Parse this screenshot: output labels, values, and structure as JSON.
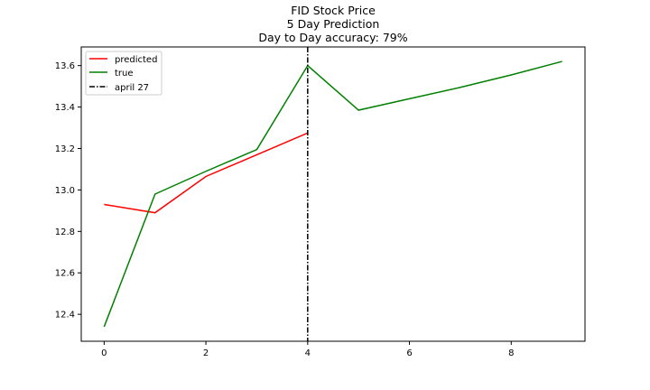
{
  "chart_data": {
    "type": "line",
    "title": "FID Stock Price",
    "subtitle_lines": [
      "5 Day Prediction",
      "Day to Day accuracy: 79%"
    ],
    "xlabel": "",
    "ylabel": "",
    "xlim": [
      -0.45,
      9.45
    ],
    "ylim": [
      12.27,
      13.69
    ],
    "x_ticks": [
      0,
      2,
      4,
      6,
      8
    ],
    "y_ticks": [
      12.4,
      12.6,
      12.8,
      13.0,
      13.2,
      13.4,
      13.6
    ],
    "x_tick_labels": [
      "0",
      "2",
      "4",
      "6",
      "8"
    ],
    "y_tick_labels": [
      "12.4",
      "12.6",
      "12.8",
      "13.0",
      "13.2",
      "13.4",
      "13.6"
    ],
    "grid": false,
    "legend_position": "top-left",
    "series": [
      {
        "name": "predicted",
        "color": "#ff0000",
        "x": [
          0,
          1,
          2,
          3,
          4
        ],
        "values": [
          12.93,
          12.89,
          13.065,
          13.17,
          13.275
        ]
      },
      {
        "name": "true",
        "color": "#008000",
        "x": [
          0,
          1,
          2,
          3,
          4,
          5,
          6,
          7,
          8,
          9
        ],
        "values": [
          12.34,
          12.98,
          13.09,
          13.195,
          13.6,
          13.385,
          13.44,
          13.495,
          13.555,
          13.62
        ]
      }
    ],
    "vline": {
      "name": "april 27",
      "x": 4,
      "color": "#000000",
      "style": "dash-dot"
    }
  }
}
